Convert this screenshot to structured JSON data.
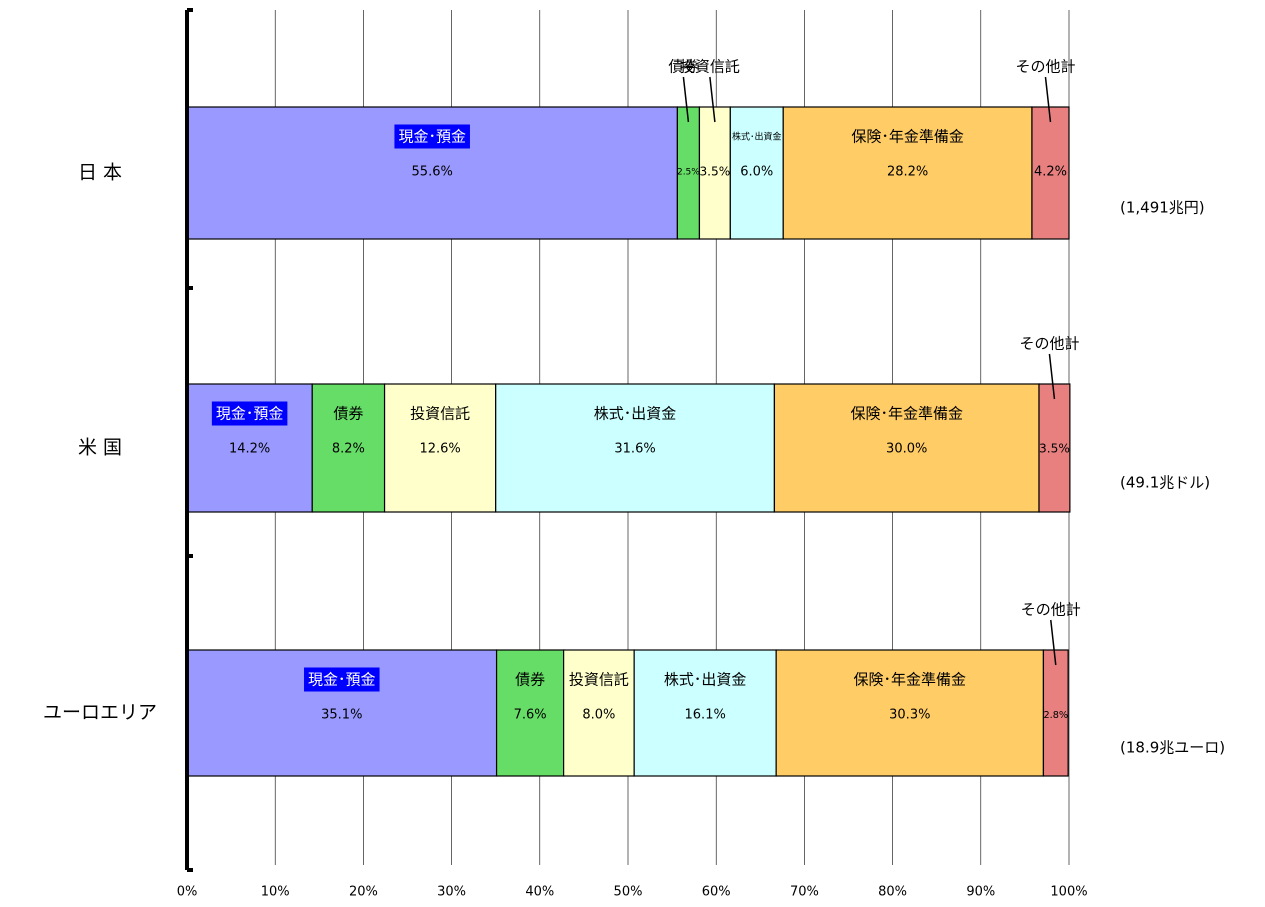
{
  "chart_data": {
    "type": "stacked-bar-100",
    "categories": [
      "日 本",
      "米 国",
      "ユーロエリア"
    ],
    "totals": [
      "(1,491兆円)",
      "(49.1兆ドル)",
      "(18.9兆ユーロ)"
    ],
    "series": [
      {
        "labels": [
          "現金･預金",
          "現金･預金",
          "現金･預金"
        ],
        "color": "#9999ff",
        "values": [
          55.6,
          14.2,
          35.1
        ],
        "value_labels": [
          "55.6%",
          "14.2%",
          "35.1%"
        ]
      },
      {
        "labels": [
          "債券",
          "債券",
          "債券"
        ],
        "color": "#66dd66",
        "values": [
          2.5,
          8.2,
          7.6
        ],
        "value_labels": [
          "2.5%",
          "8.2%",
          "7.6%"
        ]
      },
      {
        "labels": [
          "投資信託",
          "投資信託",
          "投資信託"
        ],
        "color": "#ffffcc",
        "values": [
          3.5,
          12.6,
          8.0
        ],
        "value_labels": [
          "3.5%",
          "12.6%",
          "8.0%"
        ]
      },
      {
        "labels": [
          "株式･出資金",
          "株式･出資金",
          "株式･出資金"
        ],
        "color": "#ccffff",
        "values": [
          6.0,
          31.6,
          16.1
        ],
        "value_labels": [
          "6.0%",
          "31.6%",
          "16.1%"
        ]
      },
      {
        "labels": [
          "保険･年金準備金",
          "保険･年金準備金",
          "保険･年金準備金"
        ],
        "color": "#ffcc66",
        "values": [
          28.2,
          30.0,
          30.3
        ],
        "value_labels": [
          "28.2%",
          "30.0%",
          "30.3%"
        ]
      },
      {
        "labels": [
          "その他計",
          "その他計",
          "その他計"
        ],
        "color": "#e88080",
        "values": [
          4.2,
          3.5,
          2.8
        ],
        "value_labels": [
          "4.2%",
          "3.5%",
          "2.8%"
        ]
      }
    ],
    "xlim": [
      0,
      100
    ],
    "xticks": [
      {
        "value": 0,
        "label": "0%"
      },
      {
        "value": 10,
        "label": "10%"
      },
      {
        "value": 20,
        "label": "20%"
      },
      {
        "value": 30,
        "label": "30%"
      },
      {
        "value": 40,
        "label": "40%"
      },
      {
        "value": 50,
        "label": "50%"
      },
      {
        "value": 60,
        "label": "60%"
      },
      {
        "value": 70,
        "label": "70%"
      },
      {
        "value": 80,
        "label": "80%"
      },
      {
        "value": 90,
        "label": "90%"
      },
      {
        "value": 100,
        "label": "100%"
      }
    ],
    "grid": true
  }
}
